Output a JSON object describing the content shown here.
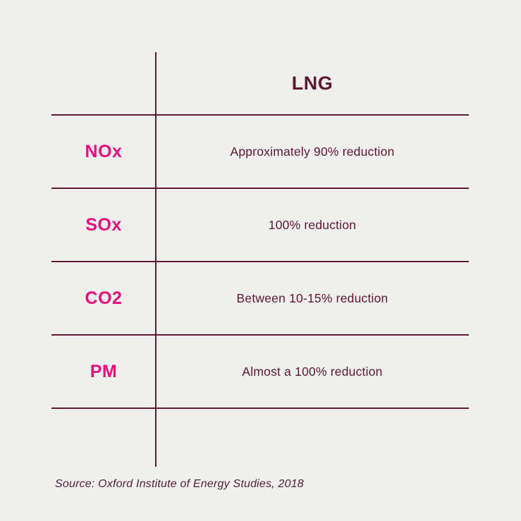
{
  "table": {
    "header": "LNG",
    "rows": [
      {
        "label": "NOx",
        "value": "Approximately 90% reduction"
      },
      {
        "label": "SOx",
        "value": "100% reduction"
      },
      {
        "label": "CO2",
        "value": "Between 10-15% reduction"
      },
      {
        "label": "PM",
        "value": "Almost a 100% reduction"
      }
    ]
  },
  "source": "Source: Oxford Institute of Energy Studies, 2018",
  "colors": {
    "background": "#efefed",
    "accent_pink": "#ec0c7e",
    "dark_maroon": "#5c1733",
    "rule": "#5e1834"
  },
  "chart_data": {
    "type": "table",
    "columns": [
      "",
      "LNG"
    ],
    "rows": [
      [
        "NOx",
        "Approximately 90% reduction"
      ],
      [
        "SOx",
        "100% reduction"
      ],
      [
        "CO2",
        "Between 10-15% reduction"
      ],
      [
        "PM",
        "Almost a 100% reduction"
      ]
    ],
    "source": "Source: Oxford Institute of Energy Studies, 2018"
  }
}
